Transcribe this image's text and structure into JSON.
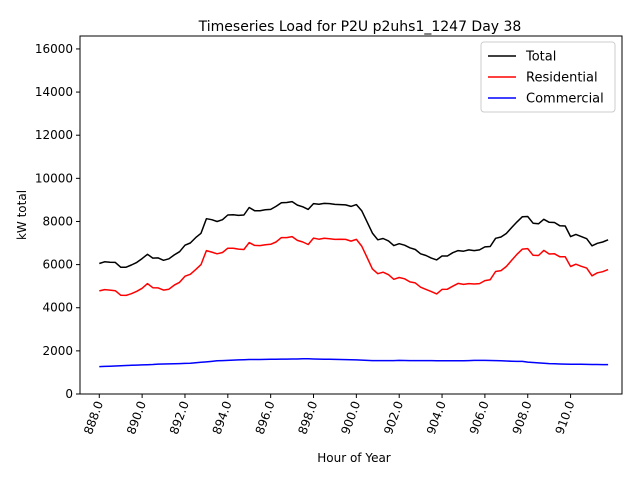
{
  "chart_data": {
    "type": "line",
    "title": "Timeseries Load for P2U p2uhs1_1247  Day 38",
    "xlabel": "Hour of Year",
    "ylabel": "kW total",
    "xlim": [
      887.1,
      912.4
    ],
    "ylim": [
      0,
      16600
    ],
    "xticks": [
      888,
      890,
      892,
      894,
      896,
      898,
      900,
      902,
      904,
      906,
      908,
      910
    ],
    "xtick_labels": [
      "888.0",
      "890.0",
      "892.0",
      "894.0",
      "896.0",
      "898.0",
      "900.0",
      "902.0",
      "904.0",
      "906.0",
      "908.0",
      "910.0"
    ],
    "yticks": [
      0,
      2000,
      4000,
      6000,
      8000,
      10000,
      12000,
      14000,
      16000
    ],
    "ytick_labels": [
      "0",
      "2000",
      "4000",
      "6000",
      "8000",
      "10000",
      "12000",
      "14000",
      "16000"
    ],
    "legend_position": "top-right",
    "x": [
      888.0,
      888.25,
      888.5,
      888.75,
      889.0,
      889.25,
      889.5,
      889.75,
      890.0,
      890.25,
      890.5,
      890.75,
      891.0,
      891.25,
      891.5,
      891.75,
      892.0,
      892.25,
      892.5,
      892.75,
      893.0,
      893.25,
      893.5,
      893.75,
      894.0,
      894.25,
      894.5,
      894.75,
      895.0,
      895.25,
      895.5,
      895.75,
      896.0,
      896.25,
      896.5,
      896.75,
      897.0,
      897.25,
      897.5,
      897.75,
      898.0,
      898.25,
      898.5,
      898.75,
      899.0,
      899.25,
      899.5,
      899.75,
      900.0,
      900.25,
      900.5,
      900.75,
      901.0,
      901.25,
      901.5,
      901.75,
      902.0,
      902.25,
      902.5,
      902.75,
      903.0,
      903.25,
      903.5,
      903.75,
      904.0,
      904.25,
      904.5,
      904.75,
      905.0,
      905.25,
      905.5,
      905.75,
      906.0,
      906.25,
      906.5,
      906.75,
      907.0,
      907.25,
      907.5,
      907.75,
      908.0,
      908.25,
      908.5,
      908.75,
      909.0,
      909.25,
      909.5,
      909.75,
      910.0,
      910.25,
      910.5,
      910.75,
      911.0,
      911.25,
      911.5,
      911.75
    ],
    "series": [
      {
        "name": "Total",
        "color": "#000000",
        "values": [
          6050,
          6130,
          6110,
          6100,
          5880,
          5880,
          5980,
          6100,
          6280,
          6480,
          6300,
          6310,
          6200,
          6270,
          6450,
          6600,
          6900,
          7000,
          7250,
          7450,
          8130,
          8080,
          8000,
          8080,
          8300,
          8310,
          8280,
          8300,
          8650,
          8500,
          8500,
          8540,
          8560,
          8700,
          8870,
          8880,
          8920,
          8760,
          8680,
          8560,
          8830,
          8800,
          8840,
          8830,
          8790,
          8780,
          8770,
          8700,
          8780,
          8500,
          7980,
          7460,
          7150,
          7210,
          7100,
          6880,
          6970,
          6900,
          6780,
          6700,
          6500,
          6420,
          6300,
          6220,
          6400,
          6400,
          6550,
          6650,
          6620,
          6680,
          6650,
          6680,
          6820,
          6840,
          7220,
          7280,
          7440,
          7720,
          7980,
          8220,
          8230,
          7920,
          7890,
          8100,
          7960,
          7950,
          7800,
          7790,
          7300,
          7400,
          7300,
          7200,
          6870,
          6990,
          7050,
          7150
        ]
      },
      {
        "name": "Residential",
        "color": "#ff0000",
        "values": [
          4780,
          4840,
          4820,
          4790,
          4580,
          4570,
          4650,
          4760,
          4900,
          5120,
          4930,
          4920,
          4820,
          4860,
          5050,
          5180,
          5460,
          5550,
          5770,
          6000,
          6650,
          6580,
          6500,
          6560,
          6760,
          6760,
          6720,
          6700,
          7020,
          6890,
          6880,
          6920,
          6940,
          7050,
          7250,
          7250,
          7300,
          7120,
          7050,
          6930,
          7230,
          7180,
          7220,
          7200,
          7170,
          7180,
          7170,
          7090,
          7170,
          6860,
          6330,
          5800,
          5580,
          5650,
          5530,
          5320,
          5400,
          5340,
          5200,
          5150,
          4950,
          4850,
          4750,
          4640,
          4850,
          4860,
          5000,
          5130,
          5080,
          5120,
          5100,
          5120,
          5260,
          5300,
          5680,
          5720,
          5910,
          6200,
          6480,
          6720,
          6740,
          6430,
          6420,
          6660,
          6490,
          6500,
          6360,
          6360,
          5910,
          6020,
          5920,
          5840,
          5480,
          5620,
          5670,
          5770
        ]
      },
      {
        "name": "Commercial",
        "color": "#0000ff",
        "values": [
          1270,
          1280,
          1290,
          1300,
          1310,
          1320,
          1330,
          1340,
          1350,
          1360,
          1370,
          1385,
          1390,
          1395,
          1400,
          1410,
          1420,
          1430,
          1450,
          1470,
          1490,
          1510,
          1540,
          1550,
          1560,
          1570,
          1580,
          1590,
          1600,
          1600,
          1600,
          1605,
          1610,
          1615,
          1620,
          1620,
          1625,
          1625,
          1630,
          1630,
          1625,
          1620,
          1615,
          1610,
          1605,
          1600,
          1595,
          1590,
          1580,
          1570,
          1560,
          1550,
          1550,
          1550,
          1550,
          1550,
          1560,
          1555,
          1550,
          1550,
          1550,
          1550,
          1550,
          1545,
          1545,
          1540,
          1540,
          1540,
          1540,
          1550,
          1560,
          1560,
          1560,
          1555,
          1550,
          1540,
          1530,
          1520,
          1510,
          1510,
          1480,
          1460,
          1440,
          1430,
          1410,
          1400,
          1390,
          1385,
          1380,
          1378,
          1375,
          1372,
          1370,
          1368,
          1365,
          1365
        ]
      }
    ]
  }
}
